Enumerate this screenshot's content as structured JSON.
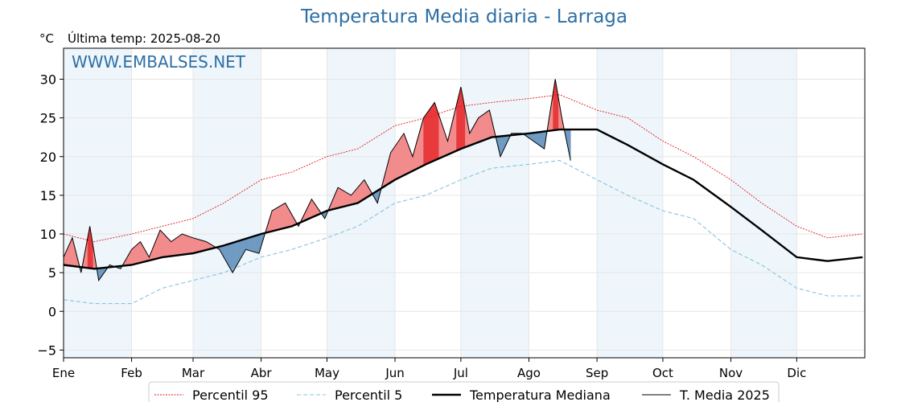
{
  "title": "Temperatura Media diaria - Larraga",
  "unit_label": "°C",
  "last_temp_label": "Última temp: 2025-08-20",
  "watermark": "WWW.EMBALSES.NET",
  "colors": {
    "title": "#2e6fa3",
    "watermark": "#2e6fa3",
    "p95": "#e31a1c",
    "p5": "#87c4dc",
    "median": "#000000",
    "current": "#000000",
    "above_fill": "#f28b8b",
    "above_fill_strong": "#e8393b",
    "below_fill": "#6f9ac2",
    "band": "#eef5fb"
  },
  "chart_data": {
    "type": "line",
    "title": "Temperatura Media diaria - Larraga",
    "ylabel": "°C",
    "ylim": [
      -6,
      34
    ],
    "yticks": [
      -5,
      0,
      5,
      10,
      15,
      20,
      25,
      30
    ],
    "months": [
      "Ene",
      "Feb",
      "Mar",
      "Abr",
      "May",
      "Jun",
      "Jul",
      "Ago",
      "Sep",
      "Oct",
      "Nov",
      "Dic"
    ],
    "grid": true,
    "legend_position": "bottom",
    "series": [
      {
        "name": "Percentil 95",
        "style": "dotted-red",
        "x": [
          1,
          15,
          32,
          46,
          60,
          74,
          91,
          105,
          121,
          135,
          152,
          166,
          182,
          196,
          213,
          227,
          244,
          258,
          274,
          288,
          305,
          319,
          335,
          349,
          365
        ],
        "y": [
          10,
          9,
          10,
          11,
          12,
          14,
          17,
          18,
          20,
          21,
          24,
          25,
          26.5,
          27,
          27.5,
          28,
          26,
          25,
          22,
          20,
          17,
          14,
          11,
          9.5,
          10
        ]
      },
      {
        "name": "Percentil 5",
        "style": "dashed-lightblue",
        "x": [
          1,
          15,
          32,
          46,
          60,
          74,
          91,
          105,
          121,
          135,
          152,
          166,
          182,
          196,
          213,
          227,
          244,
          258,
          274,
          288,
          305,
          319,
          335,
          349,
          365
        ],
        "y": [
          1.5,
          1,
          1,
          3,
          4,
          5,
          7,
          8,
          9.5,
          11,
          14,
          15,
          17,
          18.5,
          19,
          19.5,
          17,
          15,
          13,
          12,
          8,
          6,
          3,
          2,
          2
        ]
      },
      {
        "name": "Temperatura Mediana",
        "style": "thick-black",
        "x": [
          1,
          15,
          32,
          46,
          60,
          74,
          91,
          105,
          121,
          135,
          152,
          166,
          182,
          196,
          213,
          227,
          244,
          258,
          274,
          288,
          305,
          319,
          335,
          349,
          365
        ],
        "y": [
          6,
          5.5,
          6,
          7,
          7.5,
          8.5,
          10,
          11,
          13,
          14,
          17,
          19,
          21,
          22.5,
          23,
          23.5,
          23.5,
          21.5,
          19,
          17,
          13.5,
          10.5,
          7,
          6.5,
          7
        ]
      },
      {
        "name": "T. Media 2025",
        "style": "thin-black",
        "x": [
          1,
          5,
          9,
          13,
          17,
          22,
          27,
          32,
          36,
          40,
          45,
          50,
          55,
          60,
          66,
          72,
          78,
          84,
          90,
          96,
          102,
          108,
          114,
          120,
          126,
          132,
          138,
          144,
          150,
          156,
          160,
          165,
          170,
          176,
          182,
          186,
          190,
          195,
          200,
          205,
          210,
          215,
          220,
          225,
          228,
          232
        ],
        "y": [
          7,
          9.5,
          5,
          11,
          4,
          6,
          5.5,
          8,
          9,
          7,
          10.5,
          9,
          10,
          9.5,
          9,
          8,
          5,
          8,
          7.5,
          13,
          14,
          11,
          14.5,
          12,
          16,
          15,
          17,
          14,
          20.5,
          23,
          20,
          25,
          27,
          22,
          29,
          23,
          25,
          26,
          20,
          23,
          23,
          22,
          21,
          30,
          25,
          19.5
        ]
      }
    ]
  },
  "legend": {
    "p95": "Percentil 95",
    "p5": "Percentil 5",
    "median": "Temperatura Mediana",
    "current": "T. Media 2025"
  }
}
